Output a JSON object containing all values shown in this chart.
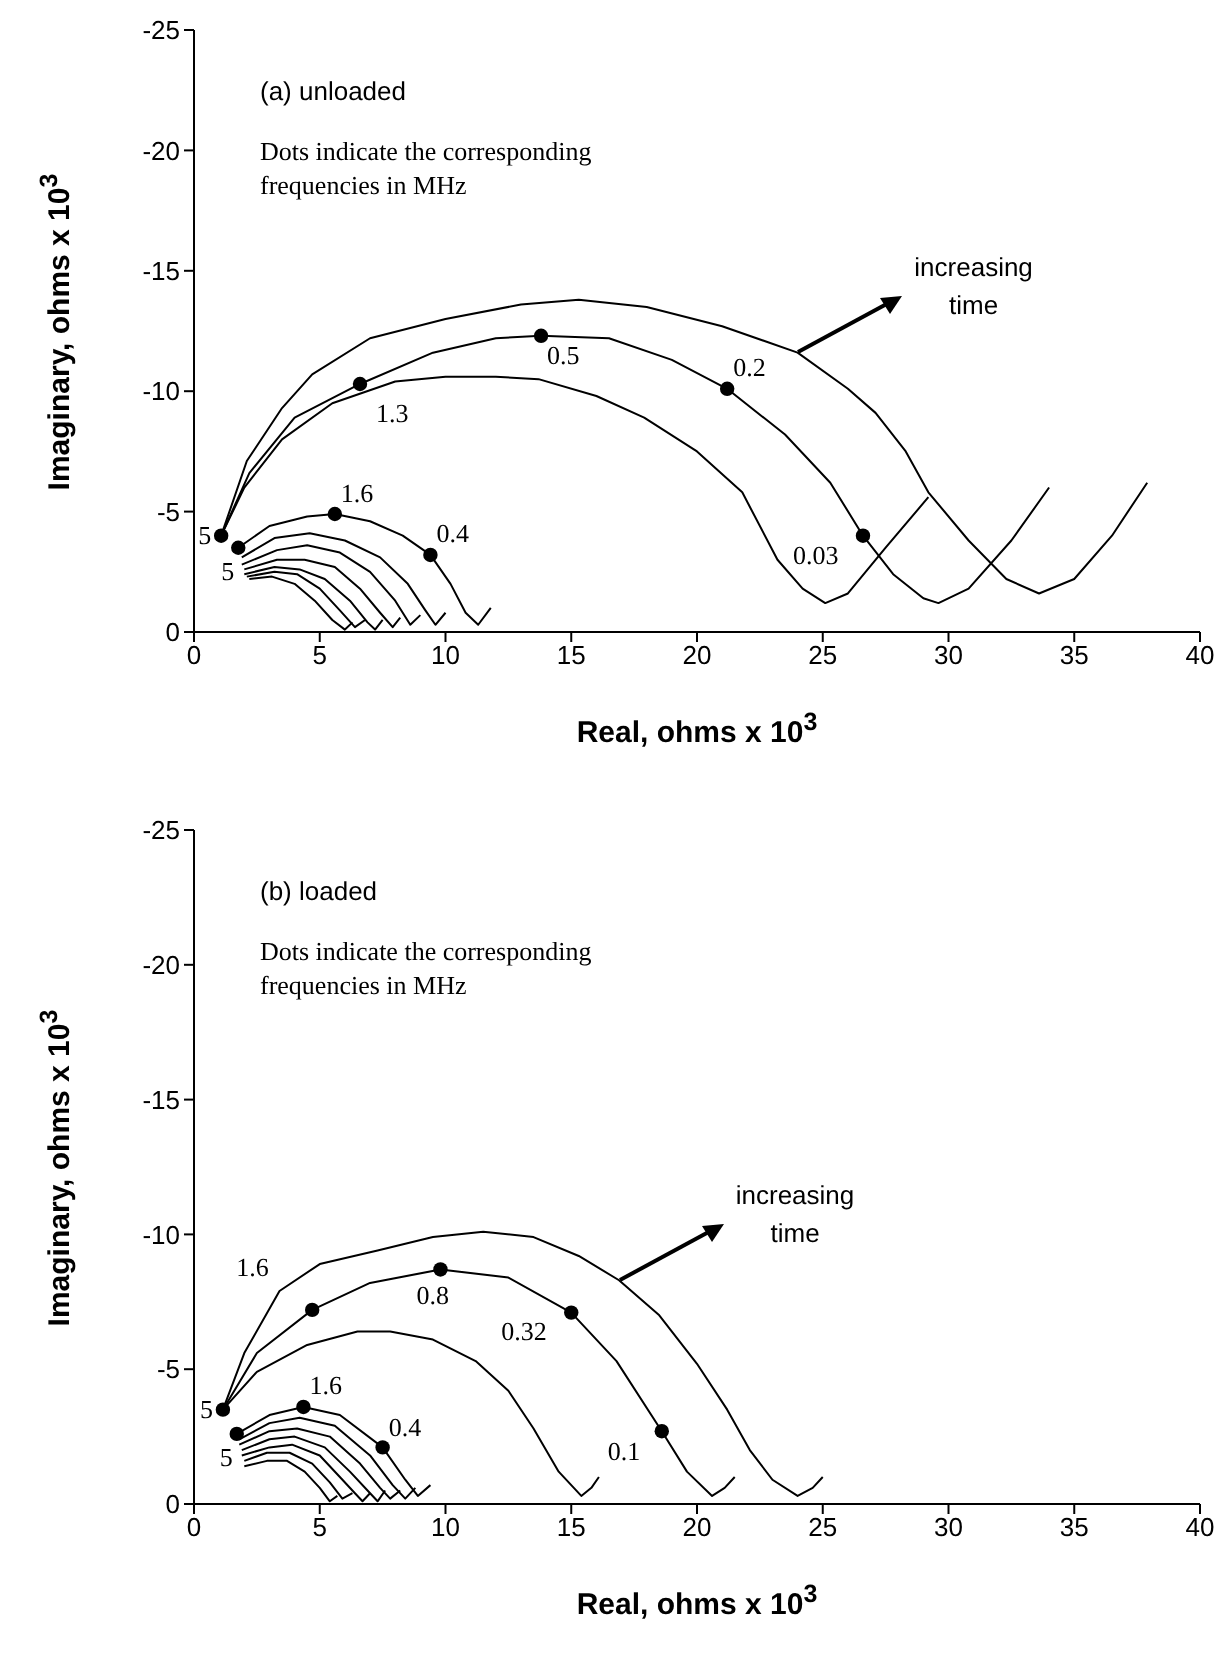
{
  "chart_data": [
    {
      "type": "line",
      "xlabel": "Real, ohms x 10$^{3}$",
      "ylabel": "Imaginary, ohms x 10$^{3}$",
      "xlim": [
        0,
        40
      ],
      "ylim": [
        0,
        -25
      ],
      "xticks": [
        0,
        5,
        10,
        15,
        20,
        25,
        30,
        35,
        40
      ],
      "yticks": [
        0,
        -5,
        -10,
        -15,
        -20,
        -25
      ],
      "marker": "none",
      "annotations": [
        "(a) unloaded",
        "Dots indicate the corresponding frequencies in MHz",
        {
          "text": "increasing time",
          "x": 24.0,
          "y": -11.6
        },
        {
          "text": "5",
          "x": 1.08,
          "y": -4.0
        },
        {
          "text": "5",
          "x": 1.76,
          "y": -3.5
        },
        {
          "text": "1.3",
          "x": 6.6,
          "y": -10.3
        },
        {
          "text": "0.5",
          "x": 13.8,
          "y": -12.3
        },
        {
          "text": "0.2",
          "x": 21.2,
          "y": -10.1
        },
        {
          "text": "0.03",
          "x": 26.6,
          "y": -4.0
        },
        {
          "text": "1.6",
          "x": 5.6,
          "y": -4.9
        },
        {
          "text": "0.4",
          "x": 9.4,
          "y": -3.2
        }
      ],
      "series": [
        {
          "type": "line",
          "color": "#000000",
          "x": [
            1.08,
            2.0,
            3.5,
            5.5,
            8.0,
            10.0,
            12.0,
            13.7,
            16.0,
            17.9,
            20.0,
            21.8,
            23.2,
            24.2,
            25.1,
            26.0,
            27.5,
            29.2
          ],
          "values": [
            -4.0,
            -6.0,
            -8.0,
            -9.5,
            -10.4,
            -10.6,
            -10.6,
            -10.5,
            -9.8,
            -8.9,
            -7.5,
            -5.8,
            -3.0,
            -1.8,
            -1.2,
            -1.6,
            -3.5,
            -5.6
          ]
        },
        {
          "type": "line",
          "color": "#000000",
          "x": [
            1.08,
            2.2,
            4.0,
            6.6,
            9.5,
            12.0,
            13.8,
            16.5,
            19.0,
            21.2,
            23.5,
            25.3,
            26.6,
            27.8,
            29.0,
            29.6,
            30.8,
            32.5,
            34.0
          ],
          "values": [
            -4.0,
            -6.6,
            -8.9,
            -10.3,
            -11.6,
            -12.2,
            -12.3,
            -12.2,
            -11.3,
            -10.1,
            -8.2,
            -6.2,
            -4.0,
            -2.4,
            -1.4,
            -1.2,
            -1.8,
            -3.8,
            -6.0
          ]
        },
        {
          "type": "line",
          "color": "#000000",
          "x": [
            1.08,
            2.1,
            3.5,
            4.7,
            7.0,
            10.0,
            13.0,
            15.3,
            18.0,
            21.0,
            24.0,
            26.0,
            27.1,
            28.3,
            29.2,
            30.8,
            32.3,
            33.6,
            35.0,
            36.5,
            37.9
          ],
          "values": [
            -4.0,
            -7.1,
            -9.3,
            -10.7,
            -12.2,
            -13.0,
            -13.6,
            -13.8,
            -13.5,
            -12.7,
            -11.6,
            -10.1,
            -9.1,
            -7.5,
            -5.8,
            -3.8,
            -2.2,
            -1.6,
            -2.2,
            -4.0,
            -6.2
          ]
        },
        {
          "type": "line",
          "color": "#000000",
          "x": [
            1.76,
            3.0,
            4.5,
            5.6,
            7.0,
            8.3,
            9.4,
            10.2,
            10.8,
            11.3,
            11.8
          ],
          "values": [
            -3.5,
            -4.4,
            -4.8,
            -4.9,
            -4.6,
            -4.0,
            -3.2,
            -2.0,
            -0.8,
            -0.3,
            -1.0
          ]
        },
        {
          "type": "line",
          "color": "#000000",
          "x": [
            1.9,
            3.2,
            4.6,
            6.0,
            7.4,
            8.5,
            9.2,
            9.6,
            10.0
          ],
          "values": [
            -3.1,
            -3.9,
            -4.1,
            -3.8,
            -3.1,
            -2.0,
            -0.9,
            -0.3,
            -0.8
          ]
        },
        {
          "type": "line",
          "color": "#000000",
          "x": [
            1.9,
            3.3,
            4.5,
            5.8,
            7.0,
            8.0,
            8.6,
            9.0
          ],
          "values": [
            -2.8,
            -3.4,
            -3.6,
            -3.3,
            -2.5,
            -1.3,
            -0.3,
            -0.7
          ]
        },
        {
          "type": "line",
          "color": "#000000",
          "x": [
            2.0,
            3.3,
            4.4,
            5.6,
            6.6,
            7.4,
            7.9,
            8.2
          ],
          "values": [
            -2.6,
            -3.0,
            -3.0,
            -2.7,
            -1.8,
            -0.8,
            -0.2,
            -0.6
          ]
        },
        {
          "type": "line",
          "color": "#000000",
          "x": [
            2.0,
            3.2,
            4.2,
            5.2,
            6.2,
            6.9,
            7.2,
            7.5
          ],
          "values": [
            -2.4,
            -2.7,
            -2.6,
            -2.2,
            -1.3,
            -0.4,
            -0.1,
            -0.5
          ]
        },
        {
          "type": "line",
          "color": "#000000",
          "x": [
            2.1,
            3.2,
            4.1,
            5.0,
            5.8,
            6.4,
            6.8
          ],
          "values": [
            -2.3,
            -2.5,
            -2.4,
            -1.8,
            -0.9,
            -0.2,
            -0.5
          ]
        },
        {
          "type": "line",
          "color": "#000000",
          "x": [
            2.2,
            3.1,
            4.0,
            4.8,
            5.5,
            6.0,
            6.3
          ],
          "values": [
            -2.2,
            -2.3,
            -2.0,
            -1.3,
            -0.5,
            -0.1,
            -0.4
          ]
        },
        {
          "type": "scatter",
          "marker": "circle",
          "color": "#000000",
          "x": [
            1.08,
            1.76,
            6.6,
            13.8,
            21.2,
            26.6,
            5.6,
            9.4
          ],
          "values": [
            -4.0,
            -3.5,
            -10.3,
            -12.3,
            -10.1,
            -4.0,
            -4.9,
            -3.2
          ]
        }
      ]
    },
    {
      "type": "line",
      "xlabel": "Real, ohms x 10$^{3}$",
      "ylabel": "Imaginary, ohms x 10$^{3}$",
      "xlim": [
        0,
        40
      ],
      "ylim": [
        0,
        -25
      ],
      "xticks": [
        0,
        5,
        10,
        15,
        20,
        25,
        30,
        35,
        40
      ],
      "yticks": [
        0,
        -5,
        -10,
        -15,
        -20,
        -25
      ],
      "marker": "none",
      "annotations": [
        "(b) loaded",
        "Dots indicate the corresponding frequencies in MHz",
        {
          "text": "increasing time",
          "x": 16.9,
          "y": -8.3
        },
        {
          "text": "5",
          "x": 1.15,
          "y": -3.5
        },
        {
          "text": "5",
          "x": 1.7,
          "y": -2.6
        },
        {
          "text": "1.6",
          "x": 4.7,
          "y": -7.2
        },
        {
          "text": "0.8",
          "x": 9.8,
          "y": -8.7
        },
        {
          "text": "0.32",
          "x": 15.0,
          "y": -7.1
        },
        {
          "text": "0.1",
          "x": 18.6,
          "y": -2.7
        },
        {
          "text": "1.6",
          "x": 4.35,
          "y": -3.6
        },
        {
          "text": "0.4",
          "x": 7.5,
          "y": -2.1
        }
      ],
      "series": [
        {
          "type": "line",
          "color": "#000000",
          "x": [
            1.15,
            2.5,
            4.5,
            6.5,
            7.8,
            9.5,
            11.2,
            12.5,
            13.5,
            14.5,
            15.4,
            15.8,
            16.1
          ],
          "values": [
            -3.5,
            -4.9,
            -5.9,
            -6.4,
            -6.4,
            -6.1,
            -5.3,
            -4.2,
            -2.8,
            -1.2,
            -0.3,
            -0.6,
            -1.0
          ]
        },
        {
          "type": "line",
          "color": "#000000",
          "x": [
            1.15,
            2.5,
            4.7,
            7.0,
            9.8,
            12.5,
            15.0,
            16.8,
            18.6,
            19.6,
            20.6,
            21.1,
            21.5
          ],
          "values": [
            -3.5,
            -5.6,
            -7.2,
            -8.2,
            -8.7,
            -8.4,
            -7.1,
            -5.3,
            -2.7,
            -1.2,
            -0.3,
            -0.6,
            -1.0
          ]
        },
        {
          "type": "line",
          "color": "#000000",
          "x": [
            1.15,
            2.0,
            3.4,
            5.0,
            7.3,
            9.5,
            11.5,
            13.5,
            15.3,
            16.9,
            18.5,
            20.0,
            21.2,
            22.1,
            23.0,
            24.0,
            24.6,
            25.0
          ],
          "values": [
            -3.5,
            -5.6,
            -7.9,
            -8.9,
            -9.4,
            -9.9,
            -10.1,
            -9.9,
            -9.2,
            -8.3,
            -7.0,
            -5.2,
            -3.5,
            -2.0,
            -0.9,
            -0.3,
            -0.6,
            -1.0
          ]
        },
        {
          "type": "line",
          "color": "#000000",
          "x": [
            1.7,
            3.0,
            4.35,
            5.8,
            7.5,
            8.4,
            8.9,
            9.4
          ],
          "values": [
            -2.6,
            -3.3,
            -3.6,
            -3.3,
            -2.1,
            -0.9,
            -0.3,
            -0.7
          ]
        },
        {
          "type": "line",
          "color": "#000000",
          "x": [
            1.8,
            3.0,
            4.2,
            5.6,
            7.0,
            7.9,
            8.4,
            8.8
          ],
          "values": [
            -2.4,
            -3.0,
            -3.2,
            -2.9,
            -1.8,
            -0.7,
            -0.2,
            -0.6
          ]
        },
        {
          "type": "line",
          "color": "#000000",
          "x": [
            1.8,
            3.0,
            4.1,
            5.4,
            6.6,
            7.4,
            7.8,
            8.2
          ],
          "values": [
            -2.2,
            -2.7,
            -2.8,
            -2.5,
            -1.5,
            -0.6,
            -0.2,
            -0.5
          ]
        },
        {
          "type": "line",
          "color": "#000000",
          "x": [
            1.9,
            3.0,
            4.0,
            5.2,
            6.2,
            6.9,
            7.3,
            7.6
          ],
          "values": [
            -2.0,
            -2.4,
            -2.5,
            -2.1,
            -1.2,
            -0.5,
            -0.1,
            -0.5
          ]
        },
        {
          "type": "line",
          "color": "#000000",
          "x": [
            1.9,
            3.0,
            3.9,
            5.0,
            5.8,
            6.4,
            6.7,
            7.0
          ],
          "values": [
            -1.8,
            -2.1,
            -2.2,
            -1.8,
            -1.0,
            -0.4,
            -0.1,
            -0.4
          ]
        },
        {
          "type": "line",
          "color": "#000000",
          "x": [
            2.0,
            2.9,
            3.8,
            4.7,
            5.4,
            5.9,
            6.3
          ],
          "values": [
            -1.6,
            -1.9,
            -1.9,
            -1.5,
            -0.8,
            -0.2,
            -0.4
          ]
        },
        {
          "type": "line",
          "color": "#000000",
          "x": [
            2.0,
            2.9,
            3.7,
            4.4,
            5.0,
            5.4,
            5.7
          ],
          "values": [
            -1.4,
            -1.6,
            -1.6,
            -1.2,
            -0.6,
            -0.1,
            -0.3
          ]
        },
        {
          "type": "scatter",
          "marker": "circle",
          "color": "#000000",
          "x": [
            1.15,
            4.7,
            9.8,
            15.0,
            18.6,
            1.7,
            4.35,
            7.5
          ],
          "values": [
            -3.5,
            -7.2,
            -8.7,
            -7.1,
            -2.7,
            -2.6,
            -3.6,
            -2.1
          ]
        }
      ]
    }
  ]
}
